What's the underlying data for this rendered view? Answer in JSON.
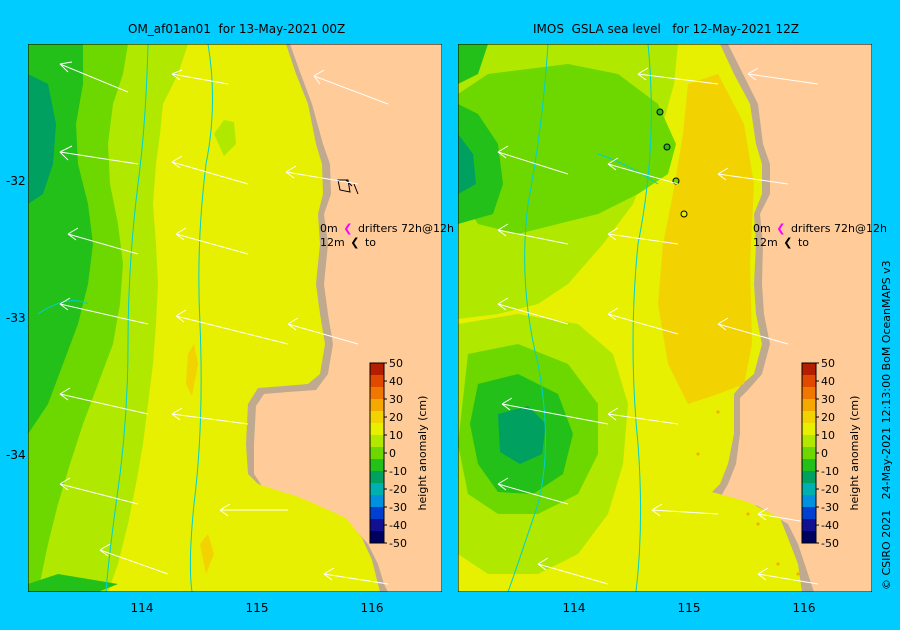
{
  "panels": [
    {
      "title": "OM_af01an01  for 13-May-2021 00Z"
    },
    {
      "title": "IMOS  GSLA sea level   for 12-May-2021 12Z"
    }
  ],
  "axes": {
    "x_ticks": [
      "114",
      "115",
      "116"
    ],
    "y_ticks": [
      "-32",
      "-33",
      "-34"
    ]
  },
  "drifter_legend": {
    "row1_left": "0m",
    "row1_right": "drifters 72h@12h",
    "row2_left": "12m",
    "row2_right": "to"
  },
  "colorbar": {
    "label": "height anomaly (cm)",
    "ticks": [
      "50",
      "40",
      "30",
      "20",
      "10",
      "0",
      "-10",
      "-20",
      "-30",
      "-40",
      "-50"
    ],
    "colors": [
      "#b41e00",
      "#e04a00",
      "#f07800",
      "#f5a800",
      "#f2d200",
      "#e6f000",
      "#b0e800",
      "#6cd800",
      "#22c018",
      "#00a060",
      "#00b0b0",
      "#0090e0",
      "#0040d0",
      "#101090",
      "#000060"
    ]
  },
  "colors": {
    "background": "#00ccff",
    "land": "#ffcc99",
    "shelf": "#bfaa90"
  },
  "credit": "© CSIRO 2021   24-May-2021 12:13:00 BoM OceanMAPS v3"
}
